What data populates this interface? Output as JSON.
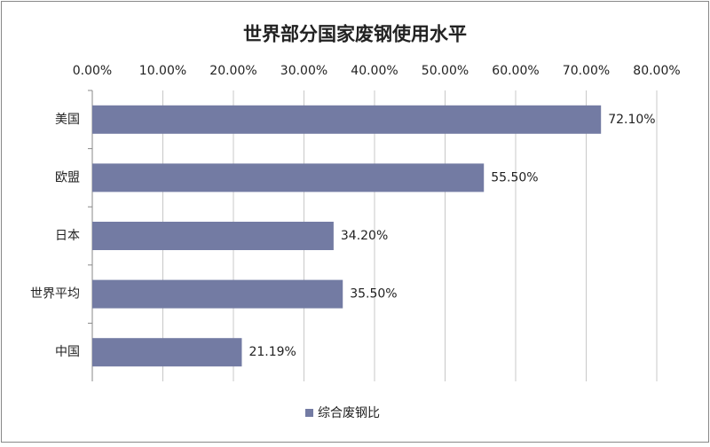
{
  "chart_data": {
    "type": "hbar",
    "title": "世界部分国家废钢使用水平",
    "categories": [
      "美国",
      "欧盟",
      "日本",
      "世界平均",
      "中国"
    ],
    "series": [
      {
        "name": "综合废钢比",
        "color": "#737ba3",
        "values": [
          72.1,
          55.5,
          34.2,
          35.5,
          21.19
        ],
        "value_labels": [
          "72.10%",
          "55.50%",
          "34.20%",
          "35.50%",
          "21.19%"
        ]
      }
    ],
    "xlim": [
      0,
      80
    ],
    "xticks": [
      {
        "value": 0,
        "label": "0.00%"
      },
      {
        "value": 10,
        "label": "10.00%"
      },
      {
        "value": 20,
        "label": "20.00%"
      },
      {
        "value": 30,
        "label": "30.00%"
      },
      {
        "value": 40,
        "label": "40.00%"
      },
      {
        "value": 50,
        "label": "50.00%"
      },
      {
        "value": 60,
        "label": "60.00%"
      },
      {
        "value": 70,
        "label": "70.00%"
      },
      {
        "value": 80,
        "label": "80.00%"
      }
    ],
    "grid": true,
    "legend": "bottom"
  }
}
